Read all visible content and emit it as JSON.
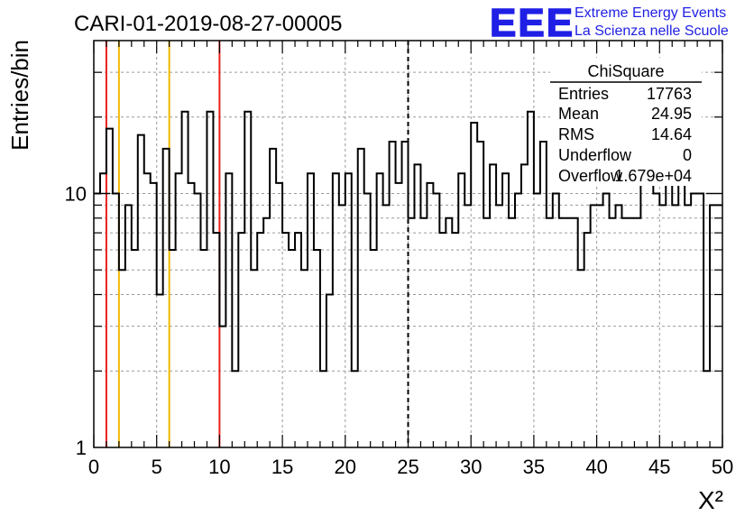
{
  "header": {
    "run_title": "CARI-01-2019-08-27-00005",
    "logo_text": "EEE",
    "org_line1": "Extreme Energy Events",
    "org_line2": "La Scienza nelle Scuole",
    "logo_color": "#1f1fe6"
  },
  "stats_box": {
    "title": "ChiSquare",
    "rows": [
      {
        "label": "Entries",
        "value": "17763"
      },
      {
        "label": "Mean",
        "value": "24.95"
      },
      {
        "label": "RMS",
        "value": "14.64"
      },
      {
        "label": "Underflow",
        "value": "0"
      },
      {
        "label": "Overflow",
        "value": "1.679e+04"
      }
    ]
  },
  "chart_data": {
    "type": "histogram",
    "title": "CARI-01-2019-08-27-00005",
    "xlabel": "X²",
    "ylabel": "Entries/bin",
    "xlim": [
      0,
      50
    ],
    "ylim": [
      1,
      40
    ],
    "yscale": "log",
    "bin_width": 0.5,
    "grid": true,
    "x_ticks": [
      0,
      5,
      10,
      15,
      20,
      25,
      30,
      35,
      40,
      45,
      50
    ],
    "x_tick_labels": [
      "0",
      "5",
      "10",
      "15",
      "20",
      "25",
      "30",
      "35",
      "40",
      "45",
      "50"
    ],
    "y_ticks": [
      1,
      10
    ],
    "y_tick_labels": [
      "1",
      "10"
    ],
    "values": [
      10,
      12,
      18,
      10,
      5,
      9,
      6,
      17,
      12,
      11,
      4,
      15,
      6,
      12,
      21,
      11,
      10,
      6,
      21,
      7,
      3,
      12,
      2,
      7,
      21,
      5,
      7,
      8,
      15,
      11,
      7,
      6,
      7,
      5,
      12,
      6,
      2,
      4,
      12,
      9,
      12,
      2,
      15,
      10,
      6,
      12,
      9,
      16,
      11,
      16,
      8,
      13,
      8,
      11,
      10,
      7,
      8,
      7,
      12,
      9,
      19,
      16,
      8,
      13,
      9,
      12,
      8,
      10,
      13,
      21,
      10,
      16,
      8,
      10,
      8,
      8,
      8,
      5,
      7,
      9,
      9,
      10,
      8,
      9,
      8,
      8,
      8,
      11,
      13,
      10,
      9,
      11,
      9,
      11,
      9,
      10,
      10,
      2,
      9,
      9
    ],
    "vertical_lines": [
      {
        "x": 1,
        "color": "#e8201f",
        "style": "solid"
      },
      {
        "x": 2,
        "color": "#f2b900",
        "style": "solid"
      },
      {
        "x": 6,
        "color": "#f2b900",
        "style": "solid"
      },
      {
        "x": 10,
        "color": "#e8201f",
        "style": "solid"
      },
      {
        "x": 25,
        "color": "#000000",
        "style": "dashed"
      }
    ]
  }
}
